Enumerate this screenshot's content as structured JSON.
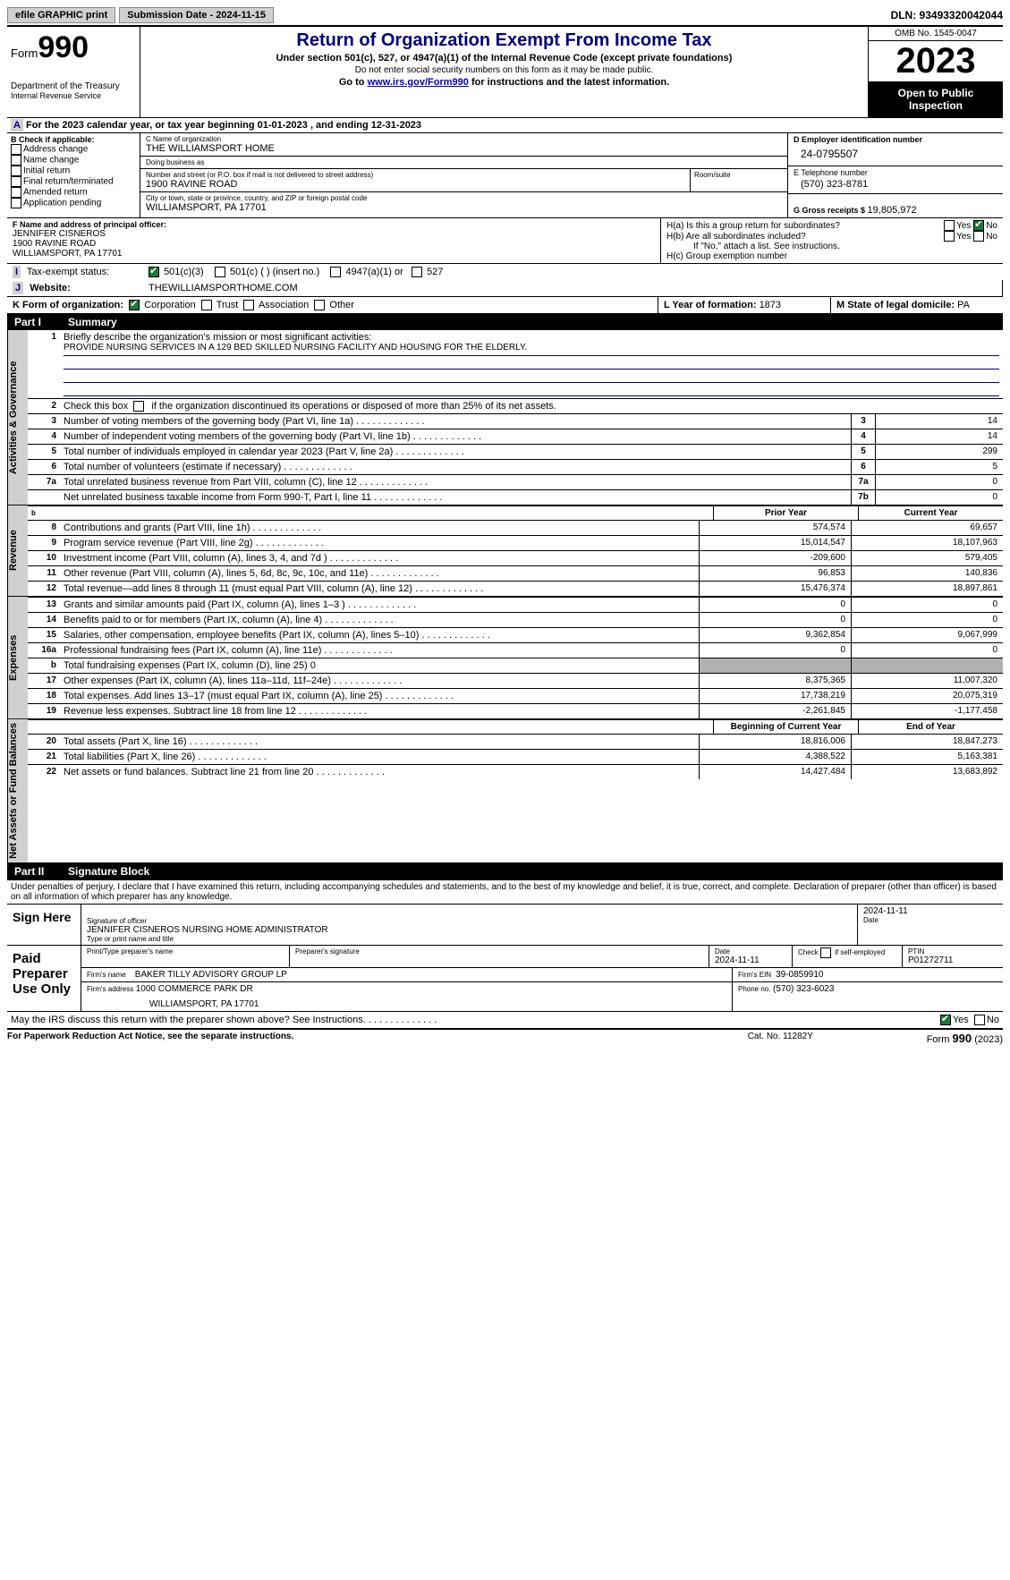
{
  "topbar": {
    "efile_label": "efile GRAPHIC print",
    "submission_label": "Submission Date - 2024-11-15",
    "dln_label": "DLN: 93493320042044"
  },
  "header": {
    "form_word": "Form",
    "form_number": "990",
    "dept": "Department of the Treasury",
    "irs": "Internal Revenue Service",
    "title": "Return of Organization Exempt From Income Tax",
    "subtitle": "Under section 501(c), 527, or 4947(a)(1) of the Internal Revenue Code (except private foundations)",
    "note_ssn": "Do not enter social security numbers on this form as it may be made public.",
    "note_link_pre": "Go to ",
    "note_link_url": "www.irs.gov/Form990",
    "note_link_post": " for instructions and the latest information.",
    "omb": "OMB No. 1545-0047",
    "year": "2023",
    "open_public": "Open to Public Inspection"
  },
  "line_a": "For the 2023 calendar year, or tax year beginning 01-01-2023    , and ending 12-31-2023",
  "section_b": {
    "header": "B Check if applicable:",
    "items": [
      "Address change",
      "Name change",
      "Initial return",
      "Final return/terminated",
      "Amended return",
      "Application pending"
    ]
  },
  "section_c": {
    "name_label": "C Name of organization",
    "name": "THE WILLIAMSPORT HOME",
    "dba_label": "Doing business as",
    "dba": "",
    "street_label": "Number and street (or P.O. box if mail is not delivered to street address)",
    "street": "1900 RAVINE ROAD",
    "room_label": "Room/suite",
    "city_label": "City or town, state or province, country, and ZIP or foreign postal code",
    "city": "WILLIAMSPORT, PA   17701"
  },
  "section_d": {
    "ein_label": "D Employer identification number",
    "ein": "24-0795507",
    "phone_label": "E Telephone number",
    "phone": "(570) 323-8781",
    "gross_label": "G Gross receipts $ ",
    "gross": "19,805,972"
  },
  "section_f": {
    "label": "F  Name and address of principal officer:",
    "name": "JENNIFER CISNEROS",
    "street": "1900 RAVINE ROAD",
    "city": "WILLIAMSPORT, PA   17701"
  },
  "section_h": {
    "ha": "H(a)  Is this a group return for subordinates?",
    "hb": "H(b)  Are all subordinates included?",
    "hb_note": "If \"No,\" attach a list. See instructions.",
    "hc": "H(c)  Group exemption number",
    "yes": "Yes",
    "no": "No"
  },
  "section_i": {
    "label": "Tax-exempt status:",
    "opts": [
      "501(c)(3)",
      "501(c) (  ) (insert no.)",
      "4947(a)(1) or",
      "527"
    ]
  },
  "section_j": {
    "label": "Website:",
    "value": "THEWILLIAMSPORTHOME.COM"
  },
  "section_k": {
    "label": "K Form of organization:",
    "opts": [
      "Corporation",
      "Trust",
      "Association",
      "Other"
    ]
  },
  "section_l": {
    "label": "L Year of formation: ",
    "value": "1873"
  },
  "section_m": {
    "label": "M State of legal domicile: ",
    "value": "PA"
  },
  "parts": {
    "p1_num": "Part I",
    "p1_title": "Summary",
    "p2_num": "Part II",
    "p2_title": "Signature Block"
  },
  "vtabs": {
    "gov": "Activities & Governance",
    "rev": "Revenue",
    "exp": "Expenses",
    "net": "Net Assets or Fund Balances"
  },
  "summary": {
    "l1_label": "Briefly describe the organization's mission or most significant activities:",
    "l1_text": "PROVIDE NURSING SERVICES IN A 129 BED SKILLED NURSING FACILITY AND HOUSING FOR THE ELDERLY.",
    "l2": "Check this box          if the organization discontinued its operations or disposed of more than 25% of its net assets.",
    "headers": {
      "prior": "Prior Year",
      "current": "Current Year",
      "beg": "Beginning of Current Year",
      "end": "End of Year"
    },
    "lines_gov": [
      {
        "n": "3",
        "d": "Number of voting members of the governing body (Part VI, line 1a)",
        "box": "3",
        "v": "14"
      },
      {
        "n": "4",
        "d": "Number of independent voting members of the governing body (Part VI, line 1b)",
        "box": "4",
        "v": "14"
      },
      {
        "n": "5",
        "d": "Total number of individuals employed in calendar year 2023 (Part V, line 2a)",
        "box": "5",
        "v": "299"
      },
      {
        "n": "6",
        "d": "Total number of volunteers (estimate if necessary)",
        "box": "6",
        "v": "5"
      },
      {
        "n": "7a",
        "d": "Total unrelated business revenue from Part VIII, column (C), line 12",
        "box": "7a",
        "v": "0"
      },
      {
        "n": "",
        "d": "Net unrelated business taxable income from Form 990-T, Part I, line 11",
        "box": "7b",
        "v": "0"
      }
    ],
    "lines_rev": [
      {
        "n": "8",
        "d": "Contributions and grants (Part VIII, line 1h)",
        "p": "574,574",
        "c": "69,657"
      },
      {
        "n": "9",
        "d": "Program service revenue (Part VIII, line 2g)",
        "p": "15,014,547",
        "c": "18,107,963"
      },
      {
        "n": "10",
        "d": "Investment income (Part VIII, column (A), lines 3, 4, and 7d )",
        "p": "-209,600",
        "c": "579,405"
      },
      {
        "n": "11",
        "d": "Other revenue (Part VIII, column (A), lines 5, 6d, 8c, 9c, 10c, and 11e)",
        "p": "96,853",
        "c": "140,836"
      },
      {
        "n": "12",
        "d": "Total revenue—add lines 8 through 11 (must equal Part VIII, column (A), line 12)",
        "p": "15,476,374",
        "c": "18,897,861"
      }
    ],
    "lines_exp": [
      {
        "n": "13",
        "d": "Grants and similar amounts paid (Part IX, column (A), lines 1–3 )",
        "p": "0",
        "c": "0"
      },
      {
        "n": "14",
        "d": "Benefits paid to or for members (Part IX, column (A), line 4)",
        "p": "0",
        "c": "0"
      },
      {
        "n": "15",
        "d": "Salaries, other compensation, employee benefits (Part IX, column (A), lines 5–10)",
        "p": "9,362,854",
        "c": "9,067,999"
      },
      {
        "n": "16a",
        "d": "Professional fundraising fees (Part IX, column (A), line 11e)",
        "p": "0",
        "c": "0"
      },
      {
        "n": "b",
        "d": "Total fundraising expenses (Part IX, column (D), line 25) 0",
        "p": "GREY",
        "c": "GREY"
      },
      {
        "n": "17",
        "d": "Other expenses (Part IX, column (A), lines 11a–11d, 11f–24e)",
        "p": "8,375,365",
        "c": "11,007,320"
      },
      {
        "n": "18",
        "d": "Total expenses. Add lines 13–17 (must equal Part IX, column (A), line 25)",
        "p": "17,738,219",
        "c": "20,075,319"
      },
      {
        "n": "19",
        "d": "Revenue less expenses. Subtract line 18 from line 12",
        "p": "-2,261,845",
        "c": "-1,177,458"
      }
    ],
    "lines_net": [
      {
        "n": "20",
        "d": "Total assets (Part X, line 16)",
        "p": "18,816,006",
        "c": "18,847,273"
      },
      {
        "n": "21",
        "d": "Total liabilities (Part X, line 26)",
        "p": "4,388,522",
        "c": "5,163,381"
      },
      {
        "n": "22",
        "d": "Net assets or fund balances. Subtract line 21 from line 20",
        "p": "14,427,484",
        "c": "13,683,892"
      }
    ]
  },
  "sig_intro": "Under penalties of perjury, I declare that I have examined this return, including accompanying schedules and statements, and to the best of my knowledge and belief, it is true, correct, and complete. Declaration of preparer (other than officer) is based on all information of which preparer has any knowledge.",
  "sign_here": {
    "label": "Sign Here",
    "sig_label": "Signature of officer",
    "date_label": "Date",
    "date": "2024-11-11",
    "name": "JENNIFER CISNEROS NURSING HOME ADMINISTRATOR",
    "name_label": "Type or print name and title"
  },
  "paid_prep": {
    "label": "Paid Preparer Use Only",
    "h_name": "Print/Type preparer's name",
    "h_sig": "Preparer's signature",
    "h_date": "Date",
    "h_date_v": "2024-11-11",
    "h_check": "Check         if self-employed",
    "h_ptin": "PTIN",
    "h_ptin_v": "P01272711",
    "firm_name_l": "Firm's name",
    "firm_name": "BAKER TILLY ADVISORY GROUP LP",
    "firm_ein_l": "Firm's EIN",
    "firm_ein": "39-0859910",
    "firm_addr_l": "Firm's address",
    "firm_addr1": "1000 COMMERCE PARK DR",
    "firm_addr2": "WILLIAMSPORT, PA   17701",
    "phone_l": "Phone no.",
    "phone": "(570) 323-6023"
  },
  "discuss": {
    "q": "May the IRS discuss this return with the preparer shown above? See Instructions.",
    "yes": "Yes",
    "no": "No"
  },
  "footer": {
    "pra": "For Paperwork Reduction Act Notice, see the separate instructions.",
    "cat": "Cat. No. 11282Y",
    "form": "Form 990 (2023)"
  },
  "colors": {
    "navy": "#000080",
    "grey_btn": "#d0d0d0",
    "link": "#0000cc",
    "check_green": "#1a7a3a"
  }
}
